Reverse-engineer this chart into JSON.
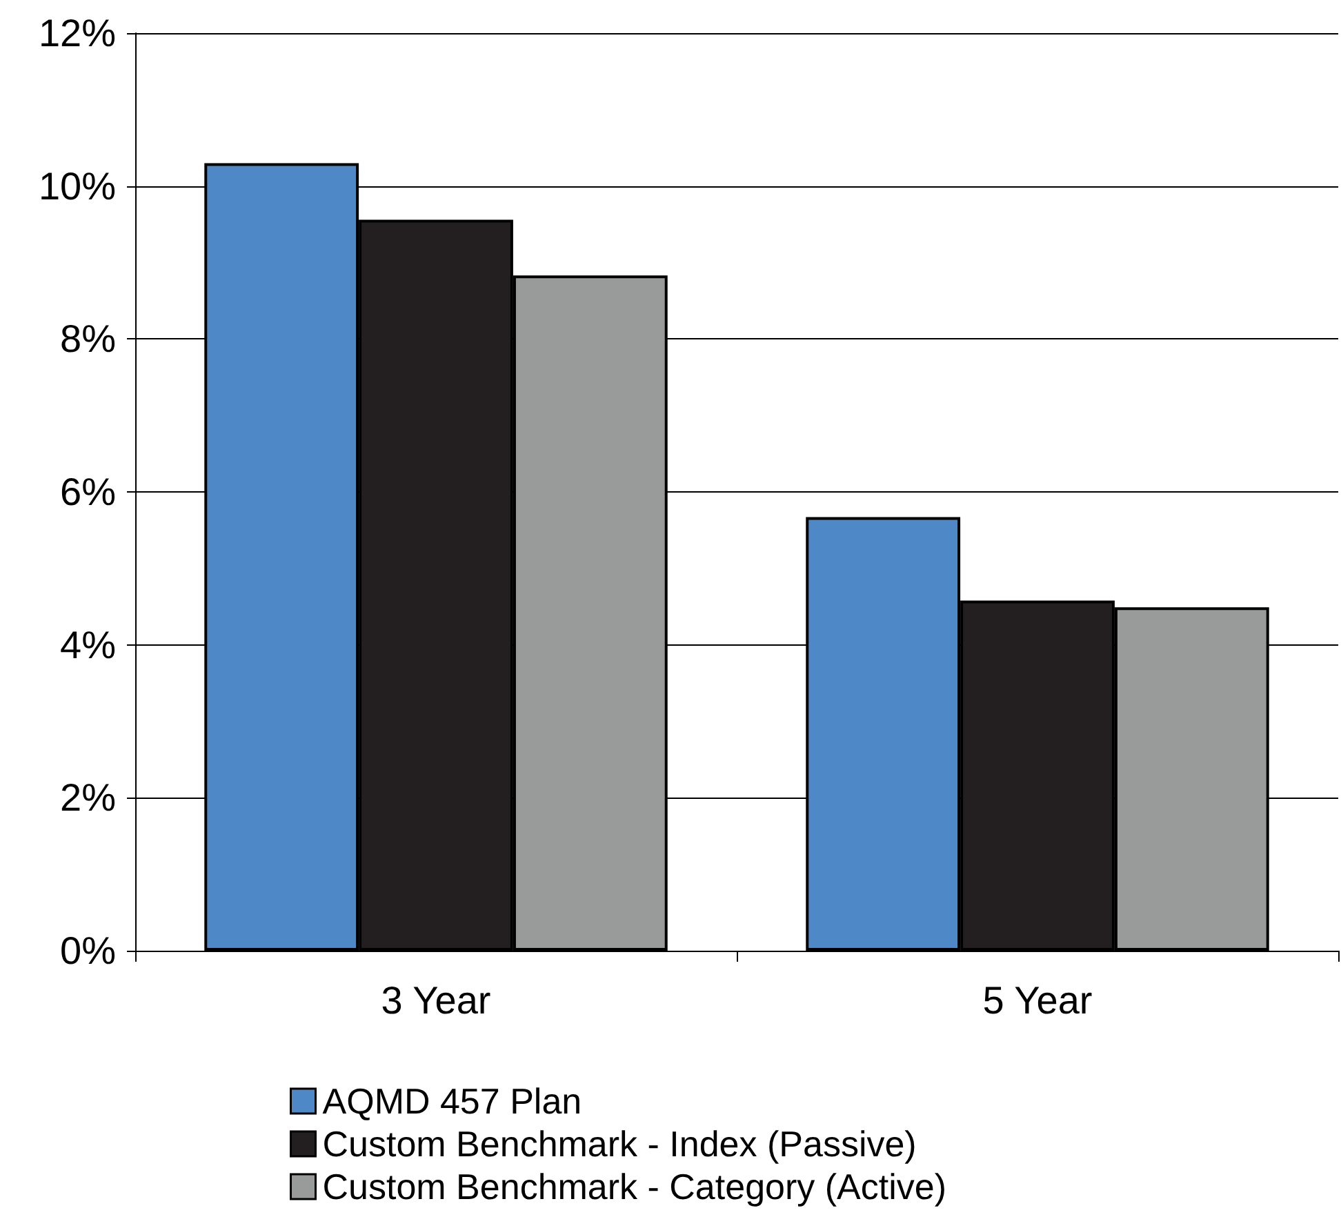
{
  "chart_data": {
    "type": "bar",
    "categories": [
      "3 Year",
      "5 Year"
    ],
    "series": [
      {
        "name": "AQMD 457 Plan",
        "color": "#4f88c6",
        "values": [
          10.3,
          5.67
        ]
      },
      {
        "name": "Custom Benchmark - Index (Passive)",
        "color": "#231f20",
        "values": [
          9.56,
          4.58
        ]
      },
      {
        "name": "Custom Benchmark - Category (Active)",
        "color": "#999b9b",
        "values": [
          8.83,
          4.49
        ]
      }
    ],
    "ylim": [
      0,
      12
    ],
    "yticks": [
      {
        "value": 0,
        "label": "0%"
      },
      {
        "value": 2,
        "label": "2%"
      },
      {
        "value": 4,
        "label": "4%"
      },
      {
        "value": 6,
        "label": "6%"
      },
      {
        "value": 8,
        "label": "8%"
      },
      {
        "value": 10,
        "label": "10%"
      },
      {
        "value": 12,
        "label": "12%"
      }
    ],
    "grid": "y",
    "legend": "bottom"
  }
}
